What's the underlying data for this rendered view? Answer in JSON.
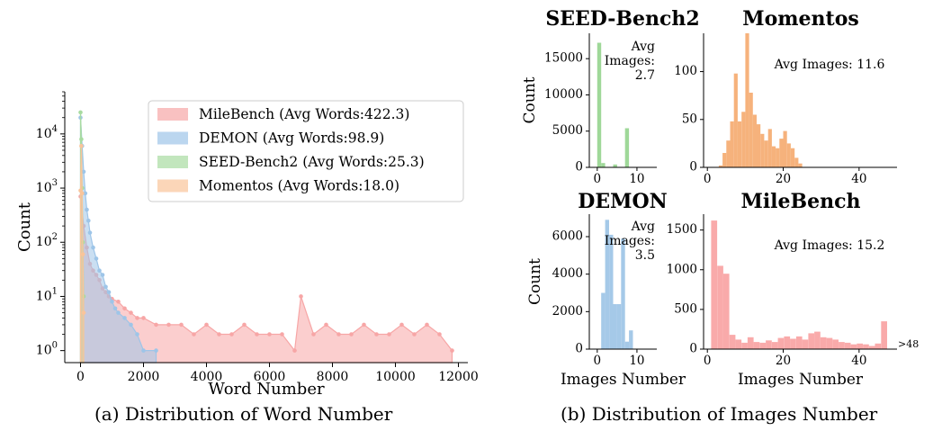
{
  "captions": {
    "a": "(a) Distribution of Word Number",
    "b": "(b) Distribution of Images Number"
  },
  "chart_data": [
    {
      "type": "area",
      "xlabel": "Word Number",
      "ylabel": "Count",
      "yscale": "log",
      "xlim": [
        -500,
        12300
      ],
      "ylim": [
        0.6,
        60000
      ],
      "xticks": [
        "0",
        "2000",
        "4000",
        "6000",
        "8000",
        "10000",
        "12000"
      ],
      "yticks": [
        "10^0",
        "10^1",
        "10^2",
        "10^3",
        "10^4"
      ],
      "legend_position": "top-right",
      "series": [
        {
          "name": "MileBench (Avg Words:422.3)",
          "color": "#f7a6a6",
          "x": [
            0,
            100,
            200,
            300,
            400,
            500,
            600,
            700,
            800,
            900,
            1000,
            1200,
            1400,
            1600,
            1800,
            2000,
            2400,
            2800,
            3200,
            3600,
            4000,
            4400,
            4800,
            5200,
            5600,
            6000,
            6400,
            6800,
            7000,
            7400,
            7800,
            8200,
            8600,
            9000,
            9400,
            9800,
            10200,
            10600,
            11000,
            11400,
            11800
          ],
          "values": [
            700,
            200,
            80,
            40,
            30,
            25,
            20,
            14,
            12,
            10,
            9,
            8,
            6,
            5,
            4,
            4,
            3,
            3,
            3,
            2,
            3,
            2,
            2,
            3,
            2,
            2,
            2,
            1,
            10,
            2,
            3,
            2,
            2,
            3,
            2,
            2,
            3,
            2,
            3,
            2,
            1
          ]
        },
        {
          "name": "DEMON (Avg Words:98.9)",
          "color": "#9ec5e8",
          "x": [
            0,
            50,
            100,
            150,
            200,
            250,
            300,
            400,
            500,
            600,
            700,
            800,
            900,
            1000,
            1100,
            1200,
            1400,
            1600,
            1800,
            2000,
            2400
          ],
          "values": [
            20000,
            6000,
            2000,
            800,
            400,
            250,
            150,
            80,
            50,
            30,
            25,
            15,
            12,
            8,
            6,
            5,
            4,
            3,
            2,
            1,
            1
          ]
        },
        {
          "name": "SEED-Bench2 (Avg Words:25.3)",
          "color": "#a8dba1",
          "x": [
            0,
            25,
            50,
            75,
            100
          ],
          "values": [
            25000,
            8000,
            1000,
            100,
            10
          ]
        },
        {
          "name": "Momentos (Avg Words:18.0)",
          "color": "#f9c49a",
          "x": [
            0,
            25,
            50,
            75,
            100
          ],
          "values": [
            900,
            6000,
            800,
            60,
            5
          ]
        }
      ]
    },
    {
      "type": "bar",
      "title": "SEED-Bench2",
      "annotation": "Avg\nImages:\n2.7",
      "ylabel": "Count",
      "color": "#9fd899",
      "xlim": [
        -2,
        15
      ],
      "ylim": [
        0,
        18500
      ],
      "xticks": [
        "0",
        "10"
      ],
      "yticks": [
        "0",
        "5000",
        "10000",
        "15000"
      ],
      "bins": [
        [
          0,
          1,
          17200
        ],
        [
          1,
          2,
          600
        ],
        [
          4,
          5,
          400
        ],
        [
          7,
          8,
          5400
        ]
      ]
    },
    {
      "type": "bar",
      "title": "Momentos",
      "annotation": "Avg Images: 11.6",
      "color": "#f6b27c",
      "xlim": [
        -1,
        50
      ],
      "ylim": [
        0,
        140
      ],
      "xticks": [
        "0",
        "20",
        "40"
      ],
      "yticks": [
        "0",
        "50",
        "100"
      ],
      "bins": [
        [
          3,
          4,
          2
        ],
        [
          4,
          5,
          15
        ],
        [
          5,
          6,
          28
        ],
        [
          6,
          7,
          48
        ],
        [
          7,
          8,
          98
        ],
        [
          8,
          9,
          48
        ],
        [
          9,
          10,
          58
        ],
        [
          10,
          11,
          140
        ],
        [
          11,
          12,
          78
        ],
        [
          12,
          13,
          55
        ],
        [
          13,
          14,
          45
        ],
        [
          14,
          15,
          35
        ],
        [
          15,
          16,
          28
        ],
        [
          16,
          17,
          40
        ],
        [
          17,
          18,
          22
        ],
        [
          18,
          19,
          20
        ],
        [
          19,
          20,
          30
        ],
        [
          20,
          21,
          38
        ],
        [
          21,
          22,
          25
        ],
        [
          22,
          23,
          20
        ],
        [
          23,
          24,
          10
        ],
        [
          24,
          25,
          4
        ]
      ]
    },
    {
      "type": "bar",
      "title": "DEMON",
      "annotation": "Avg\nImages:\n3.5",
      "ylabel": "Count",
      "xlabel": "Images Number",
      "color": "#a5c9e8",
      "xlim": [
        -2,
        15
      ],
      "ylim": [
        0,
        7200
      ],
      "xticks": [
        "0",
        "10"
      ],
      "yticks": [
        "0",
        "2000",
        "4000",
        "6000"
      ],
      "bins": [
        [
          1,
          2,
          3000
        ],
        [
          2,
          3,
          6900
        ],
        [
          3,
          4,
          6100
        ],
        [
          4,
          5,
          2400
        ],
        [
          5,
          6,
          2400
        ],
        [
          6,
          7,
          5900
        ],
        [
          7,
          8,
          400
        ],
        [
          8,
          9,
          1000
        ]
      ]
    },
    {
      "type": "bar",
      "title": "MileBench",
      "annotation": "Avg Images: 15.2",
      "xlabel": "Images Number",
      "overflow_label": ">48",
      "color": "#f9aaaa",
      "xlim": [
        -1,
        50
      ],
      "ylim": [
        0,
        1700
      ],
      "xticks": [
        "0",
        "20",
        "40"
      ],
      "yticks": [
        "0",
        "500",
        "1000",
        "1500"
      ],
      "bins": [
        [
          1,
          2.6,
          1620
        ],
        [
          2.6,
          4.2,
          1050
        ],
        [
          4.2,
          5.8,
          950
        ],
        [
          5.8,
          7.4,
          180
        ],
        [
          7.4,
          9,
          120
        ],
        [
          9,
          10.6,
          80
        ],
        [
          10.6,
          12.2,
          150
        ],
        [
          12.2,
          13.8,
          90
        ],
        [
          13.8,
          15.4,
          80
        ],
        [
          15.4,
          17,
          110
        ],
        [
          17,
          18.6,
          90
        ],
        [
          18.6,
          20.2,
          140
        ],
        [
          20.2,
          21.8,
          160
        ],
        [
          21.8,
          23.4,
          130
        ],
        [
          23.4,
          25,
          160
        ],
        [
          25,
          26.6,
          120
        ],
        [
          26.6,
          28.2,
          200
        ],
        [
          28.2,
          29.8,
          220
        ],
        [
          29.8,
          31.4,
          150
        ],
        [
          31.4,
          33,
          140
        ],
        [
          33,
          34.6,
          120
        ],
        [
          34.6,
          36.2,
          90
        ],
        [
          36.2,
          37.8,
          80
        ],
        [
          37.8,
          39.4,
          60
        ],
        [
          39.4,
          41,
          70
        ],
        [
          41,
          42.6,
          60
        ],
        [
          42.6,
          44.2,
          40
        ],
        [
          44.2,
          45.8,
          70
        ],
        [
          45.8,
          47.4,
          350
        ]
      ]
    }
  ]
}
